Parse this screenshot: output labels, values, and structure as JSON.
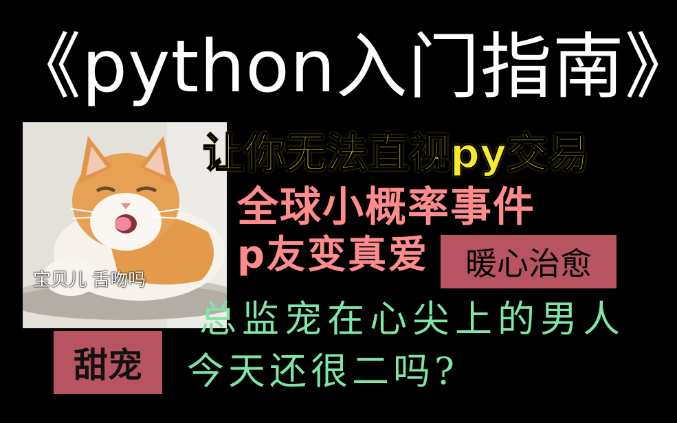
{
  "title": "《python入门指南》",
  "image": {
    "subject": "cat-icon",
    "caption": "宝贝儿 舌吻吗"
  },
  "stamps": {
    "sweet": "甜宠",
    "heal": "暖心治愈"
  },
  "lines": {
    "line1": "让你无法直视py交易",
    "line2": "全球小概率事件",
    "line3": "p友变真爱",
    "line4": "总监宠在心尖上的男人",
    "line5": "今天还很二吗?"
  },
  "colors": {
    "background": "#000000",
    "title": "#ffffff",
    "yellow": "#f4ec29",
    "pink": "#ff8b8d",
    "green": "#7ee6a7",
    "stamp": "#b85461"
  }
}
